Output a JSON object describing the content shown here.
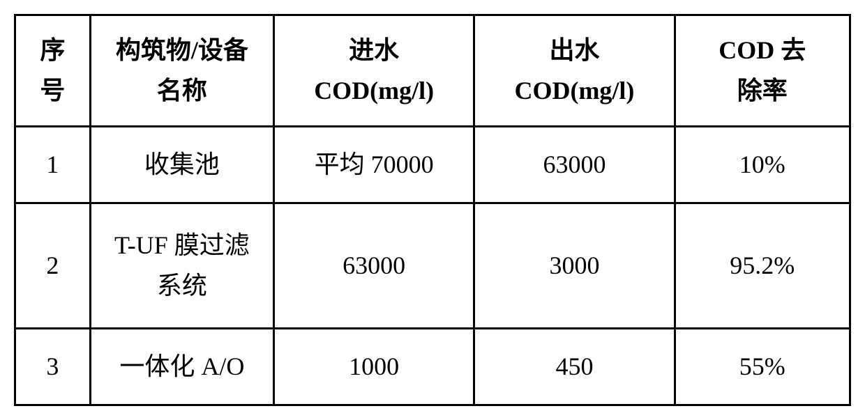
{
  "table": {
    "type": "table",
    "border_color": "#000000",
    "border_width": 3,
    "background_color": "#ffffff",
    "text_color": "#000000",
    "header_fontsize": 36,
    "cell_fontsize": 36,
    "header_fontweight": "bold",
    "cell_fontweight": "normal",
    "columns": [
      {
        "line1": "序",
        "line2": "号",
        "width_pct": 9,
        "align": "center"
      },
      {
        "line1": "构筑物/设备",
        "line2": "名称",
        "width_pct": 22,
        "align": "center"
      },
      {
        "line1": "进水",
        "line2": "COD(mg/l)",
        "width_pct": 24,
        "align": "center"
      },
      {
        "line1": "出水",
        "line2": "COD(mg/l)",
        "width_pct": 24,
        "align": "center"
      },
      {
        "line1": "COD 去",
        "line2": "除率",
        "width_pct": 21,
        "align": "center"
      }
    ],
    "rows": [
      {
        "seq": "1",
        "name_line1": "收集池",
        "name_line2": "",
        "influent": "平均 70000",
        "effluent": "63000",
        "removal": "10%",
        "tall": false
      },
      {
        "seq": "2",
        "name_line1": "T-UF 膜过滤",
        "name_line2": "系统",
        "influent": "63000",
        "effluent": "3000",
        "removal": "95.2%",
        "tall": true
      },
      {
        "seq": "3",
        "name_line1": "一体化 A/O",
        "name_line2": "",
        "influent": "1000",
        "effluent": "450",
        "removal": "55%",
        "tall": false
      }
    ]
  }
}
